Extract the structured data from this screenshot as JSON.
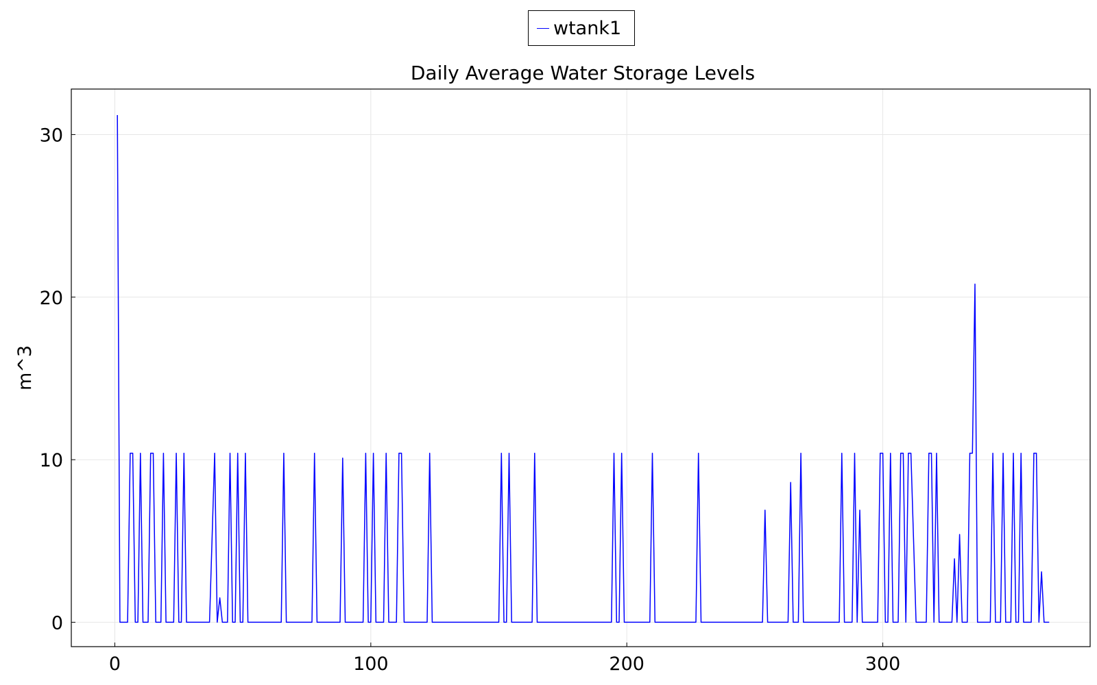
{
  "chart_data": {
    "type": "line",
    "title": "Daily Average Water Storage Levels",
    "xlabel": "",
    "ylabel": "m^3",
    "xlim": [
      -17,
      381
    ],
    "ylim": [
      -1.5,
      32.8
    ],
    "xticks": [
      0,
      100,
      200,
      300
    ],
    "yticks": [
      0,
      10,
      20,
      30
    ],
    "grid": true,
    "legend_position": "top-center",
    "series": [
      {
        "name": "wtank1",
        "color": "#0000ff",
        "points": [
          [
            1,
            31.2
          ],
          [
            2,
            0
          ],
          [
            5,
            0
          ],
          [
            6,
            10.4
          ],
          [
            7,
            10.4
          ],
          [
            8,
            0
          ],
          [
            9,
            0
          ],
          [
            10,
            10.4
          ],
          [
            11,
            0
          ],
          [
            13,
            0
          ],
          [
            14,
            10.4
          ],
          [
            15,
            10.4
          ],
          [
            16,
            0
          ],
          [
            18,
            0
          ],
          [
            19,
            10.4
          ],
          [
            20,
            0
          ],
          [
            23,
            0
          ],
          [
            24,
            10.4
          ],
          [
            25,
            0
          ],
          [
            26,
            0
          ],
          [
            27,
            10.4
          ],
          [
            28,
            0
          ],
          [
            37,
            0
          ],
          [
            39,
            10.4
          ],
          [
            40,
            0
          ],
          [
            41,
            1.5
          ],
          [
            42,
            0
          ],
          [
            44,
            0
          ],
          [
            45,
            10.4
          ],
          [
            46,
            0
          ],
          [
            47,
            0
          ],
          [
            48,
            10.4
          ],
          [
            49,
            0
          ],
          [
            50,
            0
          ],
          [
            51,
            10.4
          ],
          [
            52,
            0
          ],
          [
            65,
            0
          ],
          [
            66,
            10.4
          ],
          [
            67,
            0
          ],
          [
            77,
            0
          ],
          [
            78,
            10.4
          ],
          [
            79,
            0
          ],
          [
            88,
            0
          ],
          [
            89,
            10.1
          ],
          [
            90,
            0
          ],
          [
            97,
            0
          ],
          [
            98,
            10.4
          ],
          [
            99,
            0
          ],
          [
            100,
            0
          ],
          [
            101,
            10.4
          ],
          [
            102,
            0
          ],
          [
            105,
            0
          ],
          [
            106,
            10.4
          ],
          [
            107,
            0
          ],
          [
            110,
            0
          ],
          [
            111,
            10.4
          ],
          [
            112,
            10.4
          ],
          [
            113,
            0
          ],
          [
            122,
            0
          ],
          [
            123,
            10.4
          ],
          [
            124,
            0
          ],
          [
            150,
            0
          ],
          [
            151,
            10.4
          ],
          [
            152,
            0
          ],
          [
            153,
            0
          ],
          [
            154,
            10.4
          ],
          [
            155,
            0
          ],
          [
            163,
            0
          ],
          [
            164,
            10.4
          ],
          [
            165,
            0
          ],
          [
            194,
            0
          ],
          [
            195,
            10.4
          ],
          [
            196,
            0
          ],
          [
            197,
            0
          ],
          [
            198,
            10.4
          ],
          [
            199,
            0
          ],
          [
            209,
            0
          ],
          [
            210,
            10.4
          ],
          [
            211,
            0
          ],
          [
            227,
            0
          ],
          [
            228,
            10.4
          ],
          [
            229,
            0
          ],
          [
            253,
            0
          ],
          [
            254,
            6.9
          ],
          [
            255,
            0
          ],
          [
            263,
            0
          ],
          [
            264,
            8.6
          ],
          [
            265,
            0
          ],
          [
            267,
            0
          ],
          [
            268,
            10.4
          ],
          [
            269,
            0
          ],
          [
            283,
            0
          ],
          [
            284,
            10.4
          ],
          [
            285,
            0
          ],
          [
            288,
            0
          ],
          [
            289,
            10.4
          ],
          [
            290,
            0
          ],
          [
            291,
            6.9
          ],
          [
            292,
            0
          ],
          [
            298,
            0
          ],
          [
            299,
            10.4
          ],
          [
            300,
            10.4
          ],
          [
            301,
            0
          ],
          [
            302,
            0
          ],
          [
            303,
            10.4
          ],
          [
            304,
            0
          ],
          [
            306,
            0
          ],
          [
            307,
            10.4
          ],
          [
            308,
            10.4
          ],
          [
            309,
            0
          ],
          [
            310,
            10.4
          ],
          [
            311,
            10.4
          ],
          [
            313,
            0
          ],
          [
            317,
            0
          ],
          [
            318,
            10.4
          ],
          [
            319,
            10.4
          ],
          [
            320,
            0
          ],
          [
            321,
            10.4
          ],
          [
            322,
            0
          ],
          [
            327,
            0
          ],
          [
            328,
            3.9
          ],
          [
            329,
            0
          ],
          [
            330,
            5.4
          ],
          [
            331,
            0
          ],
          [
            333,
            0
          ],
          [
            334,
            10.4
          ],
          [
            335,
            10.4
          ],
          [
            336,
            20.8
          ],
          [
            337,
            0
          ],
          [
            342,
            0
          ],
          [
            343,
            10.4
          ],
          [
            344,
            0
          ],
          [
            346,
            0
          ],
          [
            347,
            10.4
          ],
          [
            348,
            0
          ],
          [
            350,
            0
          ],
          [
            351,
            10.4
          ],
          [
            352,
            0
          ],
          [
            353,
            0
          ],
          [
            354,
            10.4
          ],
          [
            355,
            0
          ],
          [
            358,
            0
          ],
          [
            359,
            10.4
          ],
          [
            360,
            10.4
          ],
          [
            361,
            0
          ],
          [
            362,
            3.1
          ],
          [
            363,
            0
          ],
          [
            365,
            0
          ]
        ]
      }
    ]
  },
  "colors": {
    "line": "#0000ff",
    "grid": "#e6e6e6",
    "axis": "#000000"
  }
}
